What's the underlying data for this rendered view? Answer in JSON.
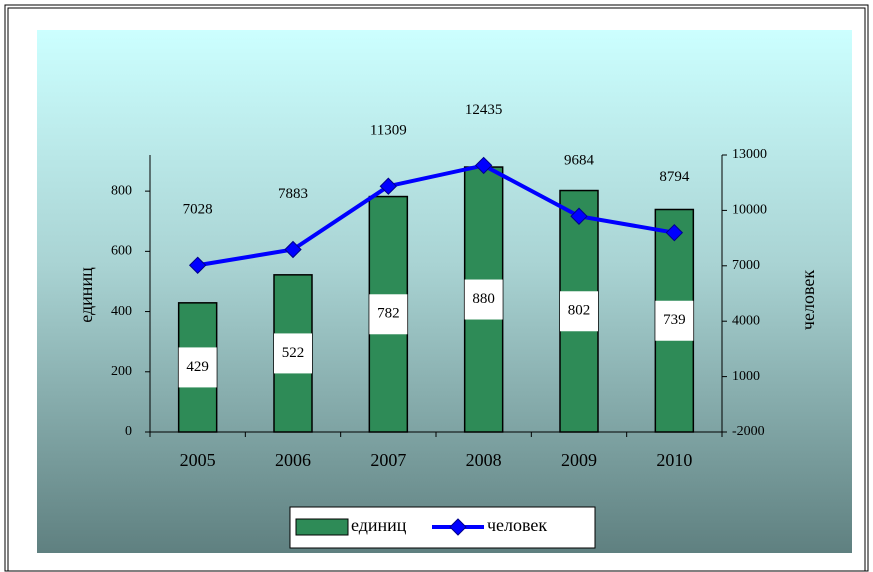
{
  "chart_data": {
    "type": "bar",
    "categories": [
      "2005",
      "2006",
      "2007",
      "2008",
      "2009",
      "2010"
    ],
    "series": [
      {
        "name": "единиц",
        "color": "#2e8b57",
        "values": [
          429,
          522,
          782,
          880,
          802,
          739
        ]
      },
      {
        "name": "человек",
        "color": "#0000ff",
        "axis": "y2",
        "type": "line",
        "values": [
          7028,
          7883,
          11309,
          12435,
          9684,
          8794
        ]
      }
    ],
    "ylabel": "единиц",
    "y2label": "человек",
    "ylim": [
      0,
      920
    ],
    "yticks": [
      0,
      200,
      400,
      600,
      800
    ],
    "y2lim": [
      -2000,
      13000
    ],
    "y2ticks": [
      -2000,
      1000,
      4000,
      7000,
      10000,
      13000
    ],
    "legend": "bottom"
  }
}
